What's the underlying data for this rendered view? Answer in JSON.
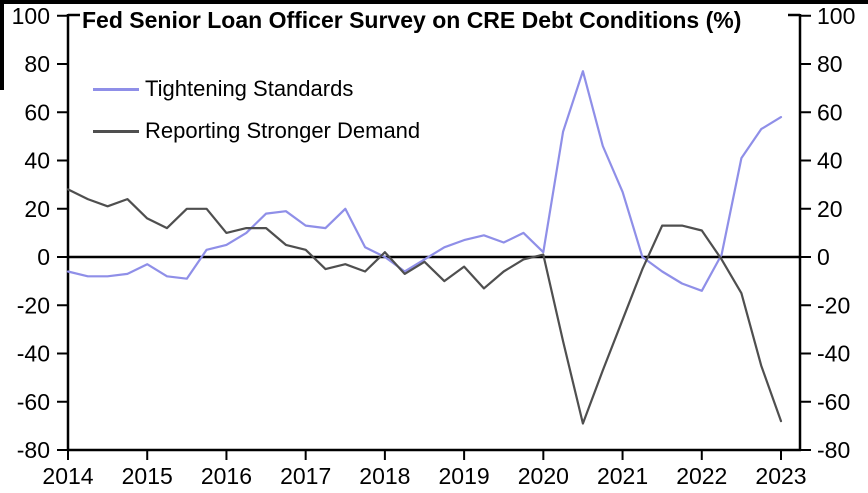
{
  "title": "Fed Senior Loan Officer Survey on CRE Debt Conditions  (%)",
  "chart_data": {
    "type": "line",
    "title": "Fed Senior Loan Officer Survey on CRE Debt Conditions (%)",
    "x": [
      "2014 Q1",
      "2014 Q2",
      "2014 Q3",
      "2014 Q4",
      "2015 Q1",
      "2015 Q2",
      "2015 Q3",
      "2015 Q4",
      "2016 Q1",
      "2016 Q2",
      "2016 Q3",
      "2016 Q4",
      "2017 Q1",
      "2017 Q2",
      "2017 Q3",
      "2017 Q4",
      "2018 Q1",
      "2018 Q2",
      "2018 Q3",
      "2018 Q4",
      "2019 Q1",
      "2019 Q2",
      "2019 Q3",
      "2019 Q4",
      "2020 Q1",
      "2020 Q2",
      "2020 Q3",
      "2020 Q4",
      "2021 Q1",
      "2021 Q2",
      "2021 Q3",
      "2021 Q4",
      "2022 Q1",
      "2022 Q2",
      "2022 Q3",
      "2022 Q4",
      "2023 Q1"
    ],
    "series": [
      {
        "name": "Tightening Standards",
        "color": "#8f8fe8",
        "values": [
          -6,
          -8,
          -8,
          -7,
          -3,
          -8,
          -9,
          3,
          5,
          10,
          18,
          19,
          13,
          12,
          20,
          4,
          0,
          -6,
          -1,
          4,
          7,
          9,
          6,
          10,
          2,
          52,
          77,
          46,
          27,
          0,
          -6,
          -11,
          -14,
          1,
          41,
          53,
          58
        ]
      },
      {
        "name": "Reporting Stronger Demand",
        "color": "#4f4f4f",
        "values": [
          28,
          24,
          21,
          24,
          16,
          12,
          20,
          20,
          10,
          12,
          12,
          5,
          3,
          -5,
          -3,
          -6,
          2,
          -7,
          -2,
          -10,
          -4,
          -13,
          -6,
          -1,
          1,
          -35,
          -69,
          -47,
          -26,
          -5,
          13,
          13,
          11,
          -1,
          -15,
          -45,
          -68
        ]
      }
    ],
    "ylim": [
      -80,
      100
    ],
    "yticks": [
      100,
      80,
      60,
      40,
      20,
      0,
      -20,
      -40,
      -60,
      -80
    ],
    "xticks": [
      "2014",
      "2015",
      "2016",
      "2017",
      "2018",
      "2019",
      "2020",
      "2021",
      "2022",
      "2023"
    ],
    "grid": false,
    "zero_line": true,
    "legend_position": "top-left-inside",
    "axis_color": "#000000",
    "dual_axis_labels": true
  }
}
